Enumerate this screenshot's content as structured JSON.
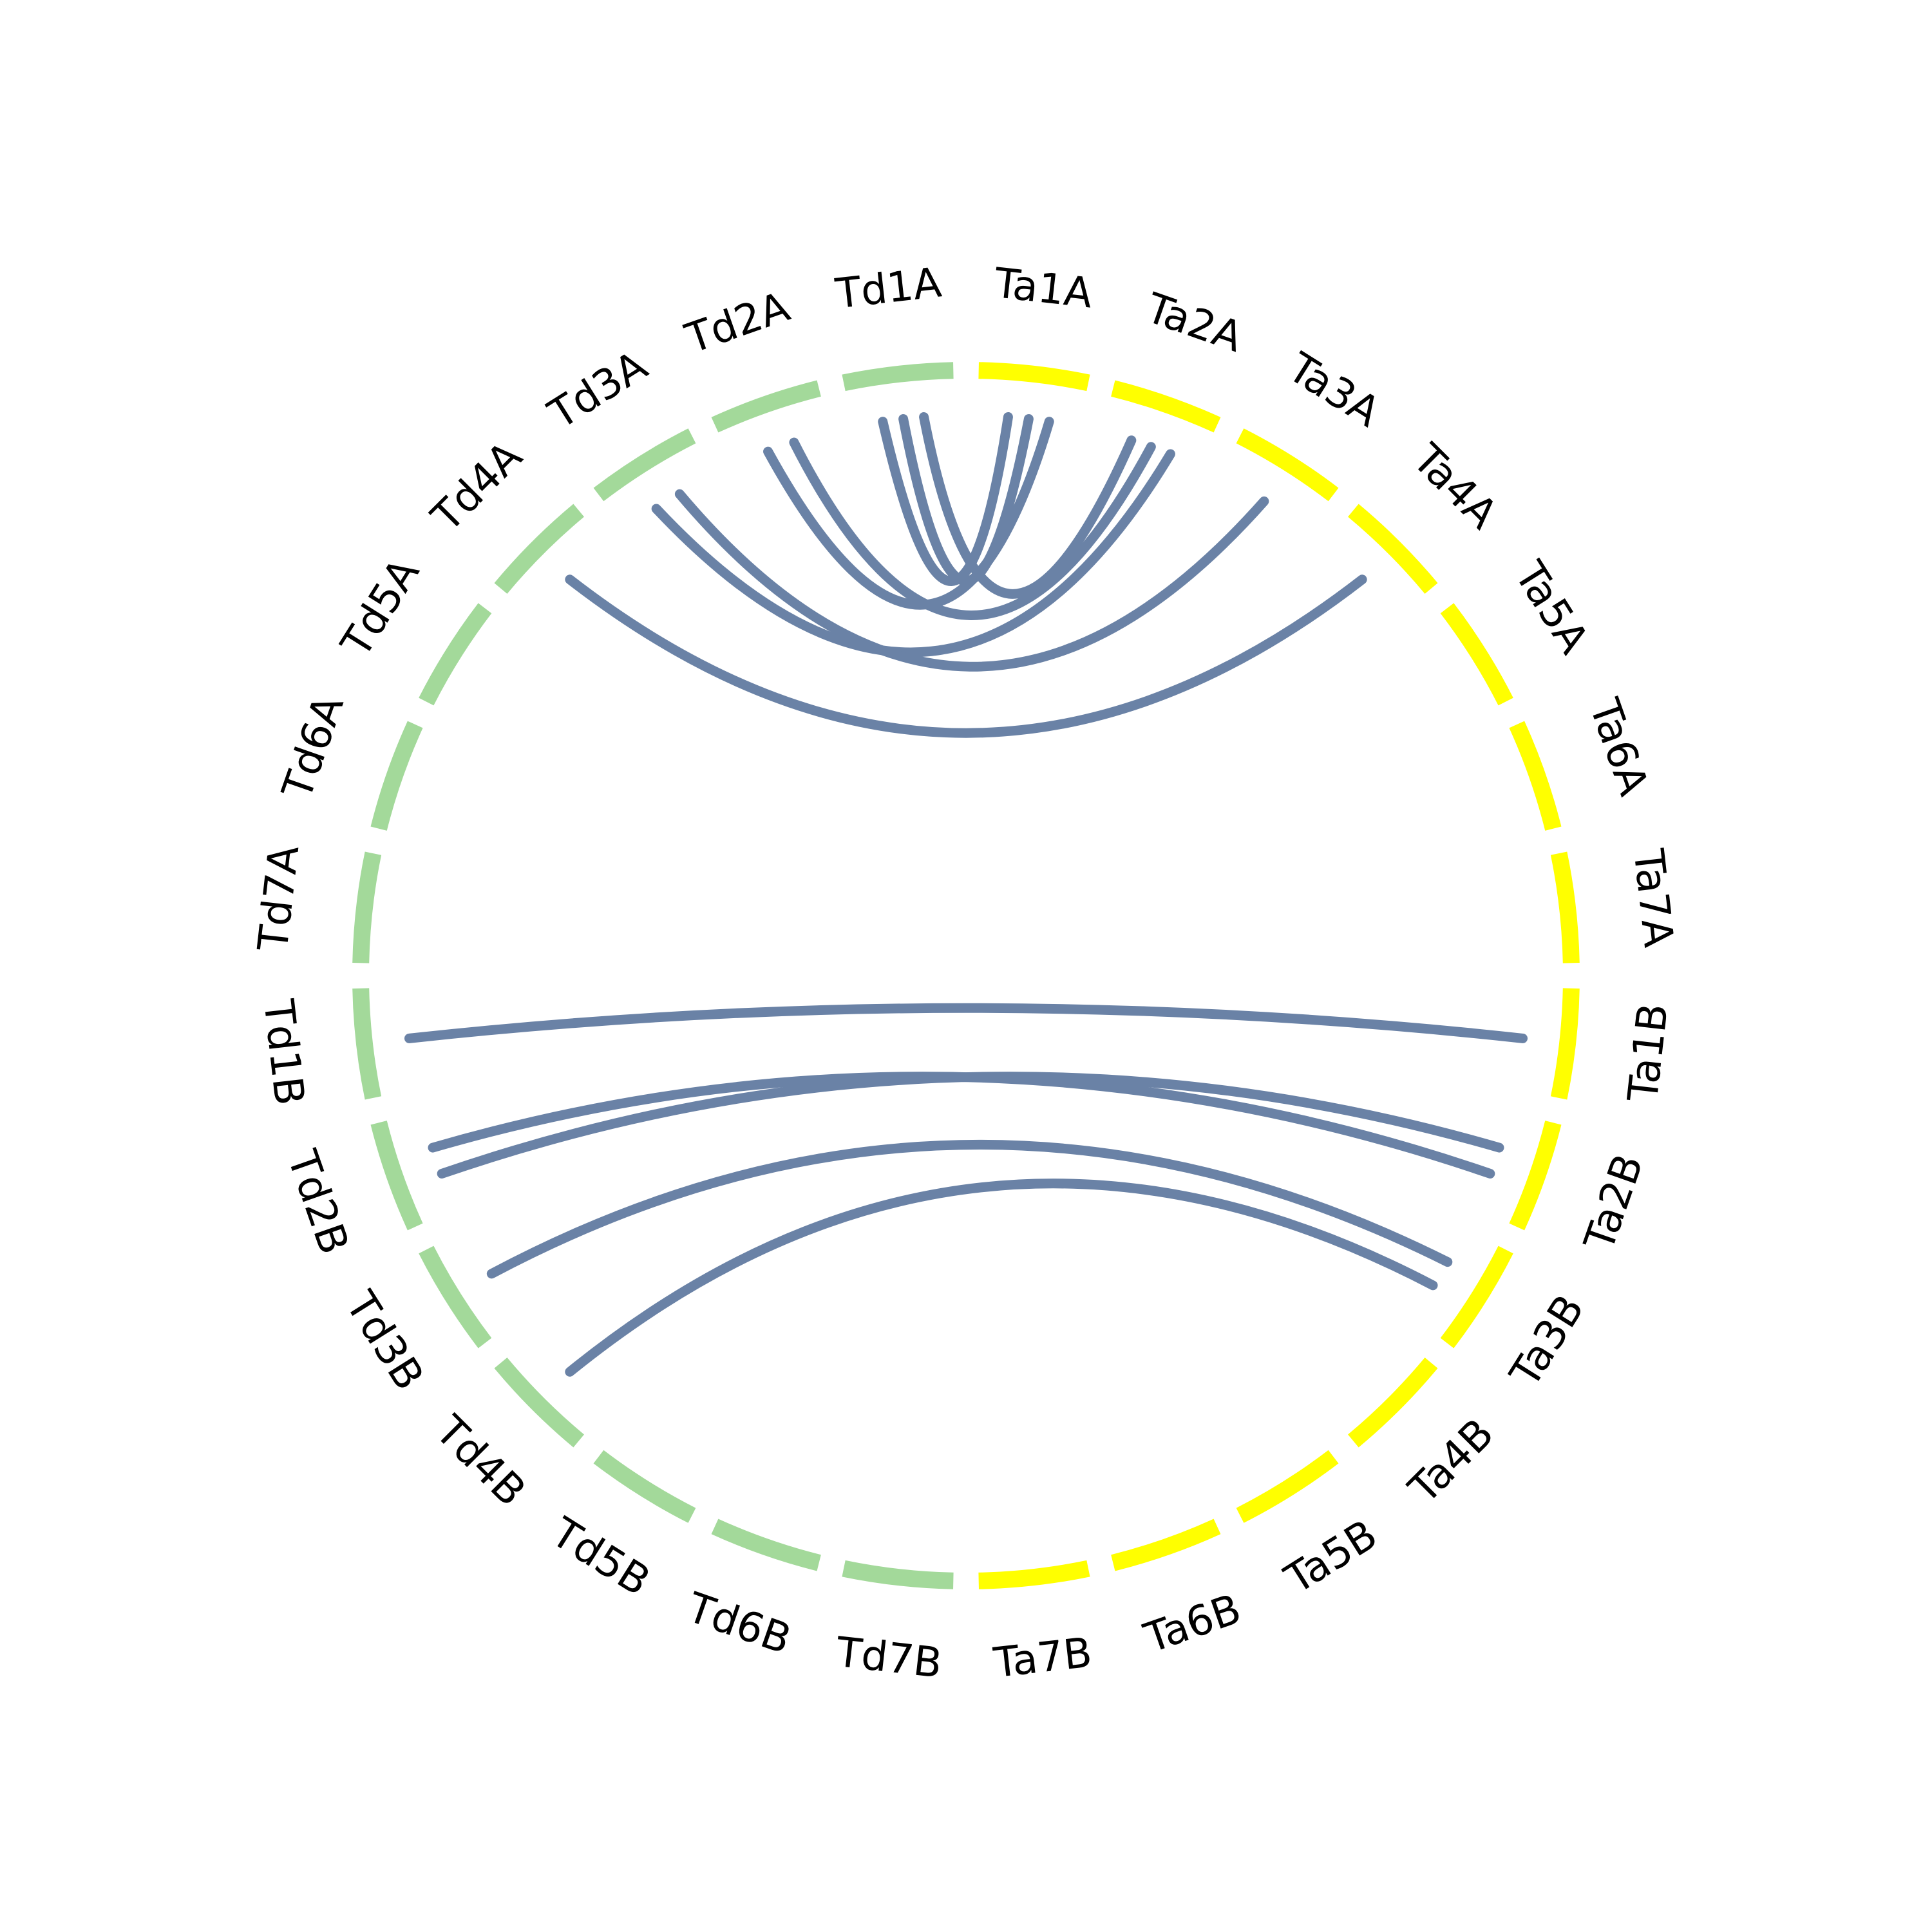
{
  "chart_data": {
    "type": "chord",
    "segments": [
      {
        "label": "Ta1A",
        "group": "Ta"
      },
      {
        "label": "Ta2A",
        "group": "Ta"
      },
      {
        "label": "Ta3A",
        "group": "Ta"
      },
      {
        "label": "Ta4A",
        "group": "Ta"
      },
      {
        "label": "Ta5A",
        "group": "Ta"
      },
      {
        "label": "Ta6A",
        "group": "Ta"
      },
      {
        "label": "Ta7A",
        "group": "Ta"
      },
      {
        "label": "Ta1B",
        "group": "Ta"
      },
      {
        "label": "Ta2B",
        "group": "Ta"
      },
      {
        "label": "Ta3B",
        "group": "Ta"
      },
      {
        "label": "Ta4B",
        "group": "Ta"
      },
      {
        "label": "Ta5B",
        "group": "Ta"
      },
      {
        "label": "Ta6B",
        "group": "Ta"
      },
      {
        "label": "Ta7B",
        "group": "Ta"
      },
      {
        "label": "Td7B",
        "group": "Td"
      },
      {
        "label": "Td6B",
        "group": "Td"
      },
      {
        "label": "Td5B",
        "group": "Td"
      },
      {
        "label": "Td4B",
        "group": "Td"
      },
      {
        "label": "Td3B",
        "group": "Td"
      },
      {
        "label": "Td2B",
        "group": "Td"
      },
      {
        "label": "Td1B",
        "group": "Td"
      },
      {
        "label": "Td7A",
        "group": "Td"
      },
      {
        "label": "Td6A",
        "group": "Td"
      },
      {
        "label": "Td5A",
        "group": "Td"
      },
      {
        "label": "Td4A",
        "group": "Td"
      },
      {
        "label": "Td3A",
        "group": "Td"
      },
      {
        "label": "Td2A",
        "group": "Td"
      },
      {
        "label": "Td1A",
        "group": "Td"
      }
    ],
    "group_colors": {
      "Ta": "#ffff00",
      "Td": "#a3d99a"
    },
    "link_color": "#6a82a6",
    "links": [
      {
        "source": "Ta1A",
        "target": "Td1A"
      },
      {
        "source": "Ta1A",
        "target": "Td1A"
      },
      {
        "source": "Ta1A",
        "target": "Td2A"
      },
      {
        "source": "Ta2A",
        "target": "Td1A"
      },
      {
        "source": "Ta2A",
        "target": "Td2A"
      },
      {
        "source": "Ta2A",
        "target": "Td3A"
      },
      {
        "source": "Ta3A",
        "target": "Td3A"
      },
      {
        "source": "Ta4A",
        "target": "Td4A"
      },
      {
        "source": "Ta1B",
        "target": "Td1B"
      },
      {
        "source": "Ta2B",
        "target": "Td2B"
      },
      {
        "source": "Ta2B",
        "target": "Td2B"
      },
      {
        "source": "Ta3B",
        "target": "Td3B"
      },
      {
        "source": "Ta3B",
        "target": "Td4B"
      }
    ]
  }
}
